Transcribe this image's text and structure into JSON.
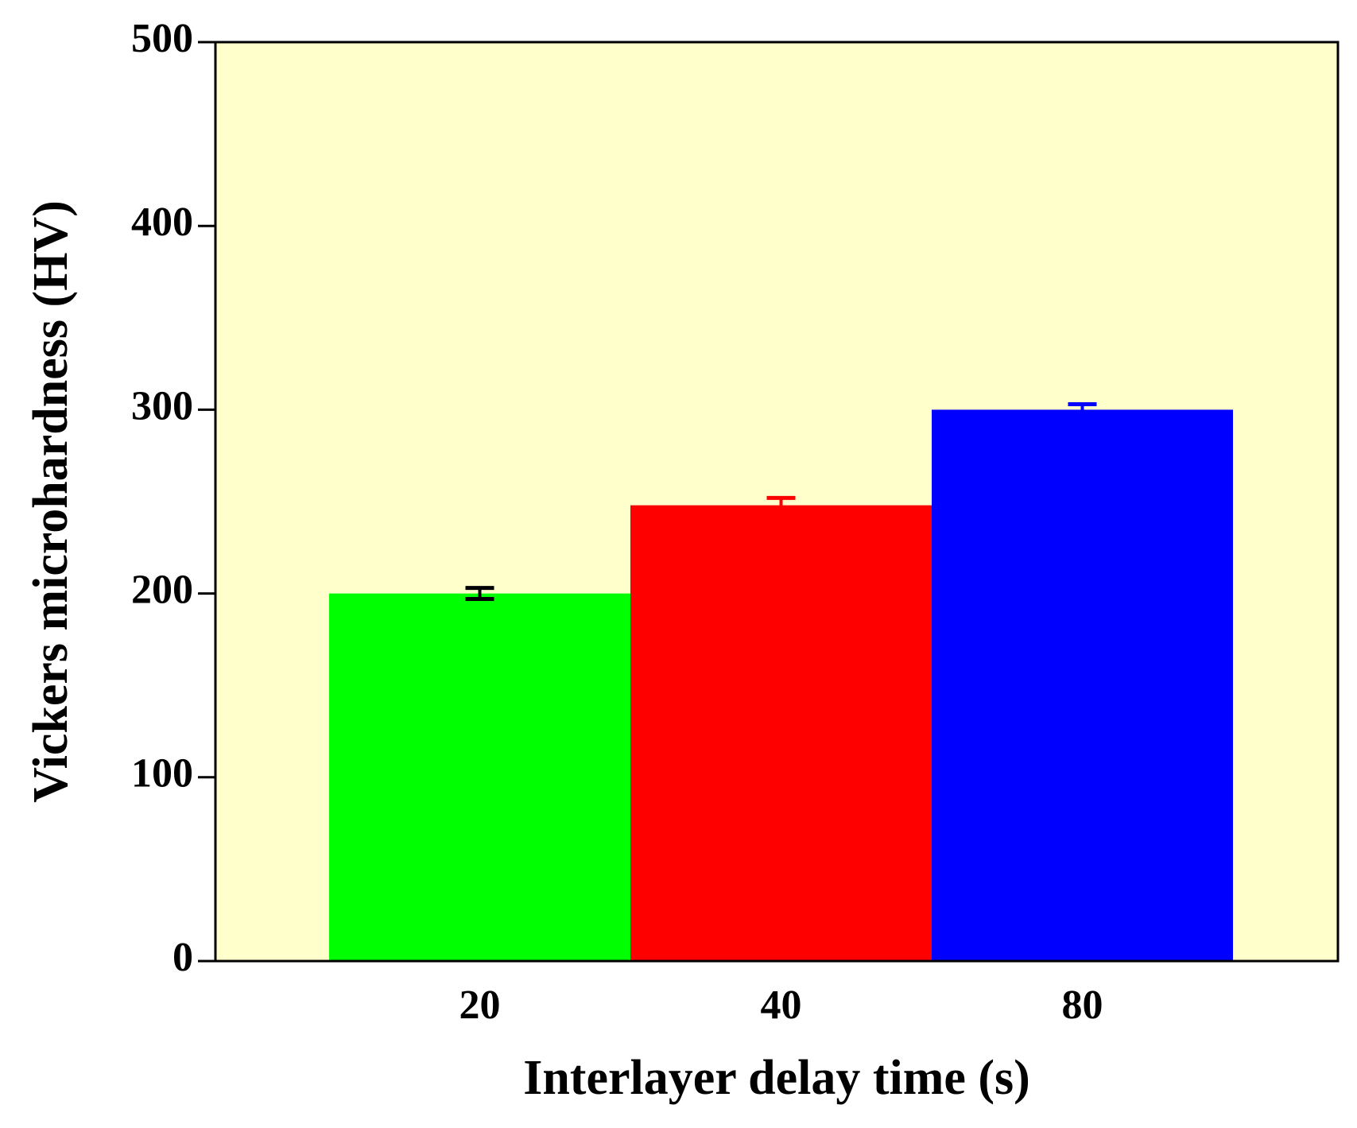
{
  "chart_data": {
    "type": "bar",
    "x_label": "Interlayer delay time  (s)",
    "y_label": "Vickers microhardness (HV)",
    "categories": [
      "20",
      "40",
      "80"
    ],
    "values": [
      200,
      248,
      300
    ],
    "errors": [
      3,
      4,
      3
    ],
    "colors": [
      "#00ff00",
      "#ff0000",
      "#0000ff"
    ],
    "error_colors": [
      "#000000",
      "#ff0000",
      "#0000ff"
    ],
    "background": "#ffffcc",
    "ylim": [
      0,
      500
    ],
    "yticks": [
      0,
      100,
      200,
      300,
      400,
      500
    ],
    "grid": false
  }
}
